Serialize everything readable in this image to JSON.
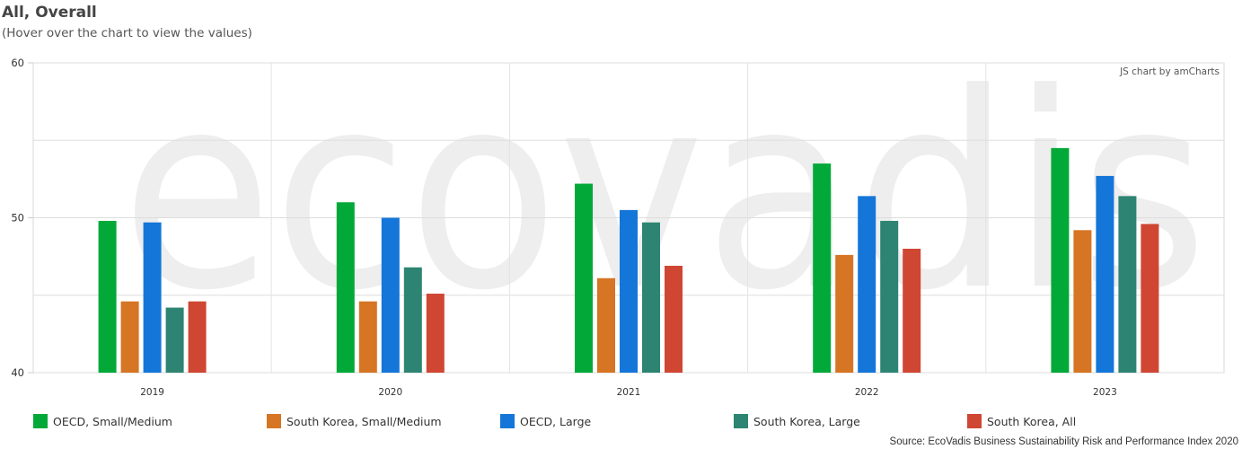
{
  "header": {
    "title": "All, Overall",
    "subtitle": "(Hover over the chart to view the values)"
  },
  "credit": "JS chart by amCharts",
  "watermark": "ecovadis",
  "source": "Source: EcoVadis Business Sustainability Risk and Performance Index 2020",
  "chart_data": {
    "type": "bar",
    "title": "All, Overall",
    "categories": [
      "2019",
      "2020",
      "2021",
      "2022",
      "2023"
    ],
    "ylim": [
      40,
      60
    ],
    "yticks": [
      "40",
      "50",
      "60"
    ],
    "grid": true,
    "legend_position": "bottom",
    "series": [
      {
        "name": "OECD, Small/Medium",
        "color": "#02a938",
        "values": [
          49.8,
          51.0,
          52.2,
          53.5,
          54.5
        ]
      },
      {
        "name": "South Korea, Small/Medium",
        "color": "#d67523",
        "values": [
          44.6,
          44.6,
          46.1,
          47.6,
          49.2
        ]
      },
      {
        "name": "OECD, Large",
        "color": "#1476d9",
        "values": [
          49.7,
          50.0,
          50.5,
          51.4,
          52.7
        ]
      },
      {
        "name": "South Korea, Large",
        "color": "#2d8472",
        "values": [
          44.2,
          46.8,
          49.7,
          49.8,
          51.4
        ]
      },
      {
        "name": "South Korea, All",
        "color": "#cf4633",
        "values": [
          44.6,
          45.1,
          46.9,
          48.0,
          49.6
        ]
      }
    ]
  }
}
